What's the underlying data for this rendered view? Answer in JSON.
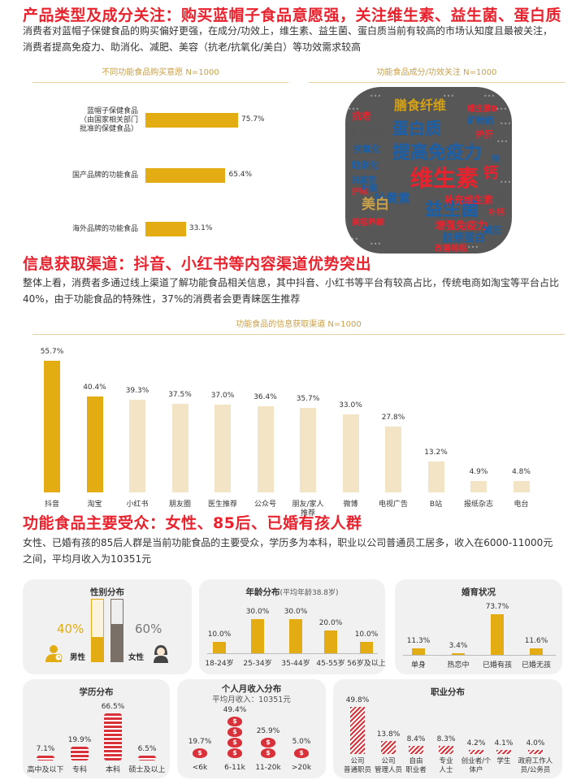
{
  "section1": {
    "title": "产品类型及成分关注：购买蓝帽子食品意愿强，关注维生素、益生菌、蛋白质",
    "para": "消费者对蓝帽子保健食品的购买偏好更强，在成分/功效上，维生素、益生菌、蛋白质当前有较高的市场认知度且最被关注，消费者提高免疫力、助消化、减肥、美容（抗老/抗氧化/美白）等功效需求较高",
    "left_subtitle": "不同功能食品购买意愿 N=1000",
    "right_subtitle": "功能食品成分/功效关注 N=1000"
  },
  "purchase_chart": {
    "type": "bar",
    "orientation": "horizontal",
    "categories": [
      "蓝帽子保健食品（由国家相关部门批准的保健食品）",
      "国产品牌的功能食品",
      "海外品牌的功能食品"
    ],
    "category_lines": [
      [
        "蓝帽子保健食品",
        "（由国家相关部门",
        "批准的保健食品）"
      ],
      [
        "国产品牌的功能食品"
      ],
      [
        "海外品牌的功能食品"
      ]
    ],
    "values": [
      75.7,
      65.4,
      33.1
    ],
    "labels": [
      "75.7%",
      "65.4%",
      "33.1%"
    ],
    "xlim": [
      0,
      100
    ]
  },
  "word_cloud": {
    "words": [
      "膳食纤维",
      "蛋白质",
      "提高免疫力",
      "维生素",
      "益生菌",
      "叶黄素",
      "美白",
      "钙",
      "补充维生素",
      "增强免疫力",
      "胶原蛋白",
      "抗老",
      "抗氧化",
      "护肝",
      "助消化",
      "矿物质",
      "补充蛋白",
      "抗疲劳",
      "护眼",
      "减肥",
      "维生素B",
      "改善睡眠",
      "美容养颜",
      "叶酸",
      "补钙",
      "铁",
      "锌"
    ]
  },
  "section2": {
    "title": "信息获取渠道：抖音、小红书等内容渠道优势突出",
    "para": "整体上看，消费者多通过线上渠道了解功能食品相关信息，其中抖音、小红书等平台有较高占比，传统电商如淘宝等平台占比40%，由于功能食品的特殊性，37%的消费者会更青睐医生推荐",
    "subtitle": "功能食品的信息获取渠道 N=1000"
  },
  "channel_chart": {
    "type": "bar",
    "categories": [
      "抖音",
      "淘宝",
      "小红书",
      "朋友圈",
      "医生推荐",
      "公众号",
      "朋友/家人推荐",
      "微博",
      "电视广告",
      "B站",
      "报纸杂志",
      "电台"
    ],
    "category_lines": [
      [
        "抖音"
      ],
      [
        "淘宝"
      ],
      [
        "小红书"
      ],
      [
        "朋友圈"
      ],
      [
        "医生推荐"
      ],
      [
        "公众号"
      ],
      [
        "朋友/家人",
        "推荐"
      ],
      [
        "微博"
      ],
      [
        "电视广告"
      ],
      [
        "B站"
      ],
      [
        "报纸杂志"
      ],
      [
        "电台"
      ]
    ],
    "values": [
      55.7,
      40.4,
      39.3,
      37.5,
      37.0,
      36.4,
      35.7,
      33.0,
      27.8,
      13.2,
      4.9,
      4.8
    ],
    "labels": [
      "55.7%",
      "40.4%",
      "39.3%",
      "37.5%",
      "37.0%",
      "36.4%",
      "35.7%",
      "33.0%",
      "27.8%",
      "13.2%",
      "4.9%",
      "4.8%"
    ],
    "highlight": [
      true,
      true,
      false,
      false,
      false,
      false,
      false,
      false,
      false,
      false,
      false,
      false
    ],
    "ylim": [
      0,
      60
    ]
  },
  "section3": {
    "title": "功能食品主要受众：女性、85后、已婚有孩人群",
    "para": "女性、已婚有孩的85后人群是当前功能食品的主要受众，学历多为本科，职业以公司普通员工居多，收入在6000-11000元之间，平均月收入为10351元"
  },
  "gender": {
    "title": "性别分布",
    "male_label": "男性",
    "male_value": "40%",
    "male": 40,
    "female_label": "女性",
    "female_value": "60%",
    "female": 60
  },
  "age": {
    "title": "年龄分布",
    "title_note": "(平均年龄38.8岁)",
    "categories": [
      "18-24岁",
      "25-34岁",
      "35-44岁",
      "45-55岁",
      "56岁及以上"
    ],
    "values": [
      10.0,
      30.0,
      30.0,
      20.0,
      10.0
    ],
    "labels": [
      "10.0%",
      "30.0%",
      "30.0%",
      "20.0%",
      "10.0%"
    ]
  },
  "marital": {
    "title": "婚育状况",
    "categories": [
      "单身",
      "热恋中",
      "已婚有孩",
      "已婚无孩"
    ],
    "values": [
      11.3,
      3.4,
      73.7,
      11.6
    ],
    "labels": [
      "11.3%",
      "3.4%",
      "73.7%",
      "11.6%"
    ]
  },
  "education": {
    "title": "学历分布",
    "categories": [
      "高中及以下",
      "专科",
      "本科",
      "硕士及以上"
    ],
    "values": [
      7.1,
      19.9,
      66.5,
      6.5
    ],
    "labels": [
      "7.1%",
      "19.9%",
      "66.5%",
      "6.5%"
    ]
  },
  "income": {
    "title": "个人月收入分布",
    "subtitle": "平均月收入：10351元",
    "categories": [
      "<6k",
      "6-11k",
      "11-20k",
      ">20k"
    ],
    "values": [
      19.7,
      49.4,
      25.9,
      5.0
    ],
    "labels": [
      "19.7%",
      "49.4%",
      "25.9%",
      "5.0%"
    ],
    "coin_symbol": "$"
  },
  "occupation": {
    "title": "职业分布",
    "categories": [
      "公司普通职员",
      "公司管理人员",
      "自由职业者",
      "专业人士",
      "创业者/个体户",
      "学生",
      "政府工作人员/公务员"
    ],
    "category_lines": [
      [
        "公司",
        "普通职员"
      ],
      [
        "公司",
        "管理人员"
      ],
      [
        "自由",
        "职业者"
      ],
      [
        "专业",
        "人士"
      ],
      [
        "创业者/个",
        "体户"
      ],
      [
        "学生"
      ],
      [
        "政府工作人",
        "员/公务员"
      ]
    ],
    "values": [
      49.8,
      13.8,
      8.4,
      8.3,
      4.2,
      4.1,
      4.0
    ],
    "labels": [
      "49.8%",
      "13.8%",
      "8.4%",
      "8.3%",
      "4.2%",
      "4.1%",
      "4.0%"
    ]
  },
  "colors": {
    "red": "#e8232e",
    "gold": "#e2ac12",
    "cream": "#f2e4c5",
    "card": "#f1f1f1",
    "stripe": "#d8313a"
  }
}
